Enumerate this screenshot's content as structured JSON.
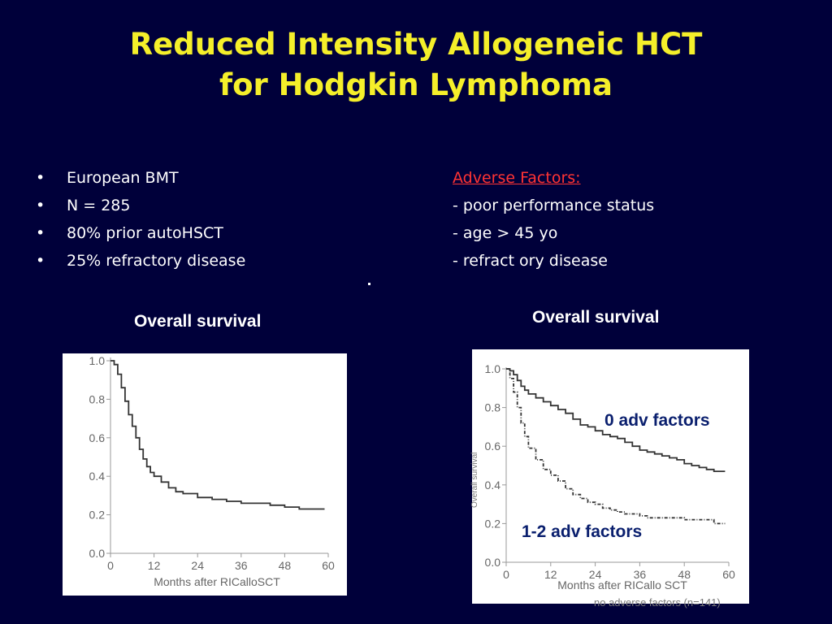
{
  "slide": {
    "title_line1": "Reduced Intensity Allogeneic HCT",
    "title_line2": "for Hodgkin Lymphoma",
    "bullets": [
      "European BMT",
      "N = 285",
      "80% prior autoHSCT",
      "25% refractory disease"
    ],
    "bullet_symbol": "•",
    "adverse_header": "Adverse Factors:",
    "adverse_items": [
      "-  poor performance status",
      "-  age > 45 yo",
      "-  refract ory disease"
    ],
    "left_chart_label": "Overall survival",
    "right_chart_label": "Overall survival",
    "colors": {
      "background": "#00003a",
      "title": "#f5ef2a",
      "adverse_header": "#ff3333",
      "annotation": "#0a1f6e"
    }
  },
  "chart_data": [
    {
      "type": "line",
      "xlabel": "Months after RICalloSCT",
      "ylabel": "",
      "xlim": [
        0,
        60
      ],
      "ylim": [
        0,
        1.0
      ],
      "xticks": [
        "0",
        "12",
        "24",
        "36",
        "48",
        "60"
      ],
      "yticks": [
        "0.0",
        "0.2",
        "0.4",
        "0.6",
        "0.8",
        "1.0"
      ],
      "series": [
        {
          "style": "solid",
          "points": [
            [
              0,
              1.0
            ],
            [
              1,
              0.98
            ],
            [
              2,
              0.93
            ],
            [
              3,
              0.86
            ],
            [
              4,
              0.79
            ],
            [
              5,
              0.72
            ],
            [
              6,
              0.66
            ],
            [
              7,
              0.6
            ],
            [
              8,
              0.54
            ],
            [
              9,
              0.49
            ],
            [
              10,
              0.45
            ],
            [
              11,
              0.42
            ],
            [
              12,
              0.4
            ],
            [
              14,
              0.37
            ],
            [
              16,
              0.34
            ],
            [
              18,
              0.32
            ],
            [
              20,
              0.31
            ],
            [
              24,
              0.29
            ],
            [
              28,
              0.28
            ],
            [
              32,
              0.27
            ],
            [
              36,
              0.26
            ],
            [
              40,
              0.26
            ],
            [
              44,
              0.25
            ],
            [
              48,
              0.24
            ],
            [
              52,
              0.23
            ],
            [
              56,
              0.23
            ],
            [
              59,
              0.23
            ]
          ]
        }
      ]
    },
    {
      "type": "line",
      "xlabel": "Months after RICallo SCT",
      "ylabel": "Overall survival",
      "xlim": [
        0,
        60
      ],
      "ylim": [
        0,
        1.0
      ],
      "xticks": [
        "0",
        "12",
        "24",
        "36",
        "48",
        "60"
      ],
      "yticks": [
        "0.0",
        "0.2",
        "0.4",
        "0.6",
        "0.8",
        "1.0"
      ],
      "footnote": "no adverse factors (n=141)",
      "annotations": [
        "0 adv factors",
        "1-2 adv factors"
      ],
      "series": [
        {
          "name": "0 adv factors",
          "style": "solid",
          "points": [
            [
              0,
              1.0
            ],
            [
              1,
              0.99
            ],
            [
              2,
              0.97
            ],
            [
              3,
              0.94
            ],
            [
              4,
              0.91
            ],
            [
              5,
              0.89
            ],
            [
              6,
              0.87
            ],
            [
              8,
              0.85
            ],
            [
              10,
              0.83
            ],
            [
              12,
              0.81
            ],
            [
              14,
              0.79
            ],
            [
              16,
              0.77
            ],
            [
              18,
              0.74
            ],
            [
              20,
              0.71
            ],
            [
              22,
              0.7
            ],
            [
              24,
              0.68
            ],
            [
              26,
              0.66
            ],
            [
              28,
              0.65
            ],
            [
              30,
              0.64
            ],
            [
              32,
              0.62
            ],
            [
              34,
              0.6
            ],
            [
              36,
              0.58
            ],
            [
              38,
              0.57
            ],
            [
              40,
              0.56
            ],
            [
              42,
              0.55
            ],
            [
              44,
              0.54
            ],
            [
              46,
              0.53
            ],
            [
              48,
              0.51
            ],
            [
              50,
              0.5
            ],
            [
              52,
              0.49
            ],
            [
              54,
              0.48
            ],
            [
              56,
              0.47
            ],
            [
              59,
              0.47
            ]
          ]
        },
        {
          "name": "1-2 adv factors",
          "style": "dashed",
          "points": [
            [
              0,
              1.0
            ],
            [
              1,
              0.95
            ],
            [
              2,
              0.88
            ],
            [
              3,
              0.8
            ],
            [
              4,
              0.72
            ],
            [
              5,
              0.65
            ],
            [
              6,
              0.59
            ],
            [
              8,
              0.53
            ],
            [
              10,
              0.48
            ],
            [
              12,
              0.45
            ],
            [
              14,
              0.42
            ],
            [
              16,
              0.38
            ],
            [
              18,
              0.35
            ],
            [
              20,
              0.33
            ],
            [
              22,
              0.31
            ],
            [
              24,
              0.3
            ],
            [
              26,
              0.28
            ],
            [
              28,
              0.27
            ],
            [
              30,
              0.26
            ],
            [
              32,
              0.25
            ],
            [
              34,
              0.25
            ],
            [
              36,
              0.24
            ],
            [
              38,
              0.23
            ],
            [
              40,
              0.23
            ],
            [
              44,
              0.23
            ],
            [
              48,
              0.22
            ],
            [
              52,
              0.22
            ],
            [
              56,
              0.2
            ],
            [
              59,
              0.2
            ]
          ]
        }
      ]
    }
  ]
}
